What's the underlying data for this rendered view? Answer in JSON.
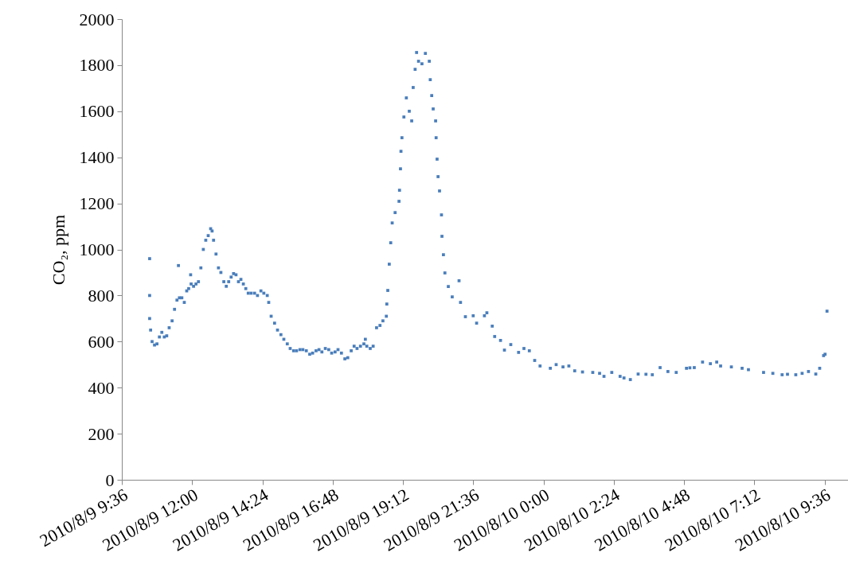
{
  "chart_data": {
    "type": "scatter",
    "ylabel": "CO₂, ppm",
    "marker": "square",
    "grid": false,
    "xlim": [
      "2010-08-09T09:36",
      "2010-08-10T10:24"
    ],
    "ylim": [
      0,
      2000
    ],
    "xticks": [
      {
        "value": "2010-08-09T09:36",
        "label": "2010/8/9 9:36"
      },
      {
        "value": "2010-08-09T12:00",
        "label": "2010/8/9 12:00"
      },
      {
        "value": "2010-08-09T14:24",
        "label": "2010/8/9 14:24"
      },
      {
        "value": "2010-08-09T16:48",
        "label": "2010/8/9 16:48"
      },
      {
        "value": "2010-08-09T19:12",
        "label": "2010/8/9 19:12"
      },
      {
        "value": "2010-08-09T21:36",
        "label": "2010/8/9 21:36"
      },
      {
        "value": "2010-08-10T00:00",
        "label": "2010/8/10 0:00"
      },
      {
        "value": "2010-08-10T02:24",
        "label": "2010/8/10 2:24"
      },
      {
        "value": "2010-08-10T04:48",
        "label": "2010/8/10 4:48"
      },
      {
        "value": "2010-08-10T07:12",
        "label": "2010/8/10 7:12"
      },
      {
        "value": "2010-08-10T09:36",
        "label": "2010/8/10 9:36"
      }
    ],
    "yticks": [
      0,
      200,
      400,
      600,
      800,
      1000,
      1200,
      1400,
      1600,
      1800,
      2000
    ],
    "series": [
      {
        "color": "#4a7ebb",
        "x": [
          "2010-08-09T10:33",
          "2010-08-09T10:33",
          "2010-08-09T10:33",
          "2010-08-09T10:35",
          "2010-08-09T10:38",
          "2010-08-09T10:43",
          "2010-08-09T10:48",
          "2010-08-09T10:53",
          "2010-08-09T10:58",
          "2010-08-09T11:03",
          "2010-08-09T11:08",
          "2010-08-09T11:13",
          "2010-08-09T11:19",
          "2010-08-09T11:24",
          "2010-08-09T11:29",
          "2010-08-09T11:32",
          "2010-08-09T11:34",
          "2010-08-09T11:39",
          "2010-08-09T11:44",
          "2010-08-09T11:49",
          "2010-08-09T11:53",
          "2010-08-09T11:57",
          "2010-08-09T11:58",
          "2010-08-09T12:03",
          "2010-08-09T12:08",
          "2010-08-09T12:13",
          "2010-08-09T12:18",
          "2010-08-09T12:23",
          "2010-08-09T12:28",
          "2010-08-09T12:33",
          "2010-08-09T12:38",
          "2010-08-09T12:41",
          "2010-08-09T12:44",
          "2010-08-09T12:49",
          "2010-08-09T12:54",
          "2010-08-09T12:59",
          "2010-08-09T13:05",
          "2010-08-09T13:10",
          "2010-08-09T13:15",
          "2010-08-09T13:20",
          "2010-08-09T13:25",
          "2010-08-09T13:30",
          "2010-08-09T13:35",
          "2010-08-09T13:40",
          "2010-08-09T13:45",
          "2010-08-09T13:50",
          "2010-08-09T13:55",
          "2010-08-09T14:01",
          "2010-08-09T14:08",
          "2010-08-09T14:14",
          "2010-08-09T14:21",
          "2010-08-09T14:27",
          "2010-08-09T14:34",
          "2010-08-09T14:37",
          "2010-08-09T14:42",
          "2010-08-09T14:49",
          "2010-08-09T14:55",
          "2010-08-09T15:02",
          "2010-08-09T15:08",
          "2010-08-09T15:15",
          "2010-08-09T15:21",
          "2010-08-09T15:28",
          "2010-08-09T15:34",
          "2010-08-09T15:41",
          "2010-08-09T15:47",
          "2010-08-09T15:54",
          "2010-08-09T16:01",
          "2010-08-09T16:07",
          "2010-08-09T16:14",
          "2010-08-09T16:20",
          "2010-08-09T16:26",
          "2010-08-09T16:33",
          "2010-08-09T16:40",
          "2010-08-09T16:46",
          "2010-08-09T16:53",
          "2010-08-09T16:59",
          "2010-08-09T17:06",
          "2010-08-09T17:13",
          "2010-08-09T17:19",
          "2010-08-09T17:26",
          "2010-08-09T17:32",
          "2010-08-09T17:38",
          "2010-08-09T17:45",
          "2010-08-09T17:52",
          "2010-08-09T17:55",
          "2010-08-09T17:58",
          "2010-08-09T18:05",
          "2010-08-09T18:11",
          "2010-08-09T18:18",
          "2010-08-09T18:25",
          "2010-08-09T18:31",
          "2010-08-09T18:38",
          "2010-08-09T18:39",
          "2010-08-09T18:41",
          "2010-08-09T18:44",
          "2010-08-09T18:47",
          "2010-08-09T18:50",
          "2010-08-09T18:56",
          "2010-08-09T19:04",
          "2010-08-09T19:05",
          "2010-08-09T19:07",
          "2010-08-09T19:08",
          "2010-08-09T19:10",
          "2010-08-09T19:14",
          "2010-08-09T19:19",
          "2010-08-09T19:25",
          "2010-08-09T19:30",
          "2010-08-09T19:33",
          "2010-08-09T19:37",
          "2010-08-09T19:40",
          "2010-08-09T19:44",
          "2010-08-09T19:51",
          "2010-08-09T19:58",
          "2010-08-09T20:06",
          "2010-08-09T20:08",
          "2010-08-09T20:11",
          "2010-08-09T20:14",
          "2010-08-09T20:19",
          "2010-08-09T20:20",
          "2010-08-09T20:22",
          "2010-08-09T20:24",
          "2010-08-09T20:27",
          "2010-08-09T20:31",
          "2010-08-09T20:32",
          "2010-08-09T20:35",
          "2010-08-09T20:38",
          "2010-08-09T20:45",
          "2010-08-09T20:53",
          "2010-08-09T21:07",
          "2010-08-09T21:10",
          "2010-08-09T21:20",
          "2010-08-09T21:36",
          "2010-08-09T21:43",
          "2010-08-09T21:59",
          "2010-08-09T22:04",
          "2010-08-09T22:15",
          "2010-08-09T22:20",
          "2010-08-09T22:32",
          "2010-08-09T22:40",
          "2010-08-09T22:53",
          "2010-08-09T23:09",
          "2010-08-09T23:20",
          "2010-08-09T23:31",
          "2010-08-09T23:42",
          "2010-08-09T23:53",
          "2010-08-10T00:14",
          "2010-08-10T00:26",
          "2010-08-10T00:40",
          "2010-08-10T00:52",
          "2010-08-10T01:04",
          "2010-08-10T01:20",
          "2010-08-10T01:41",
          "2010-08-10T01:55",
          "2010-08-10T02:04",
          "2010-08-10T02:20",
          "2010-08-10T02:37",
          "2010-08-10T02:45",
          "2010-08-10T02:58",
          "2010-08-10T03:14",
          "2010-08-10T03:30",
          "2010-08-10T03:43",
          "2010-08-10T03:59",
          "2010-08-10T04:15",
          "2010-08-10T04:32",
          "2010-08-10T04:53",
          "2010-08-10T05:00",
          "2010-08-10T05:09",
          "2010-08-10T05:26",
          "2010-08-10T05:42",
          "2010-08-10T05:55",
          "2010-08-10T06:03",
          "2010-08-10T06:25",
          "2010-08-10T06:47",
          "2010-08-10T07:00",
          "2010-08-10T07:31",
          "2010-08-10T07:50",
          "2010-08-10T08:09",
          "2010-08-10T08:20",
          "2010-08-10T08:37",
          "2010-08-10T08:50",
          "2010-08-10T09:03",
          "2010-08-10T09:18",
          "2010-08-10T09:26",
          "2010-08-10T09:34",
          "2010-08-10T09:37",
          "2010-08-10T09:41"
        ],
        "values": [
          960,
          800,
          700,
          650,
          600,
          585,
          590,
          620,
          640,
          620,
          625,
          660,
          690,
          740,
          780,
          930,
          790,
          790,
          770,
          820,
          830,
          890,
          850,
          840,
          850,
          860,
          920,
          1000,
          1040,
          1060,
          1090,
          1080,
          1040,
          980,
          920,
          900,
          860,
          840,
          860,
          880,
          895,
          890,
          860,
          870,
          850,
          830,
          810,
          810,
          810,
          800,
          820,
          810,
          800,
          770,
          710,
          680,
          650,
          630,
          610,
          590,
          570,
          560,
          560,
          565,
          565,
          560,
          545,
          550,
          560,
          565,
          555,
          570,
          565,
          550,
          555,
          565,
          550,
          525,
          530,
          560,
          580,
          570,
          580,
          590,
          610,
          580,
          570,
          580,
          660,
          670,
          690,
          710,
          763,
          822,
          936,
          1029,
          1115,
          1160,
          1209,
          1257,
          1350,
          1426,
          1485,
          1575,
          1658,
          1600,
          1558,
          1703,
          1782,
          1855,
          1817,
          1806,
          1851,
          1817,
          1737,
          1668,
          1610,
          1558,
          1485,
          1392,
          1316,
          1254,
          1150,
          1057,
          977,
          898,
          839,
          794,
          864,
          770,
          708,
          712,
          680,
          712,
          725,
          667,
          622,
          605,
          563,
          587,
          553,
          570,
          560,
          518,
          494,
          484,
          500,
          490,
          494,
          473,
          468,
          466,
          462,
          449,
          466,
          449,
          442,
          435,
          459,
          458,
          456,
          487,
          470,
          466,
          484,
          486,
          487,
          511,
          504,
          511,
          494,
          490,
          484,
          478,
          466,
          462,
          456,
          458,
          456,
          462,
          470,
          459,
          484,
          539,
          545,
          732
        ]
      }
    ]
  }
}
